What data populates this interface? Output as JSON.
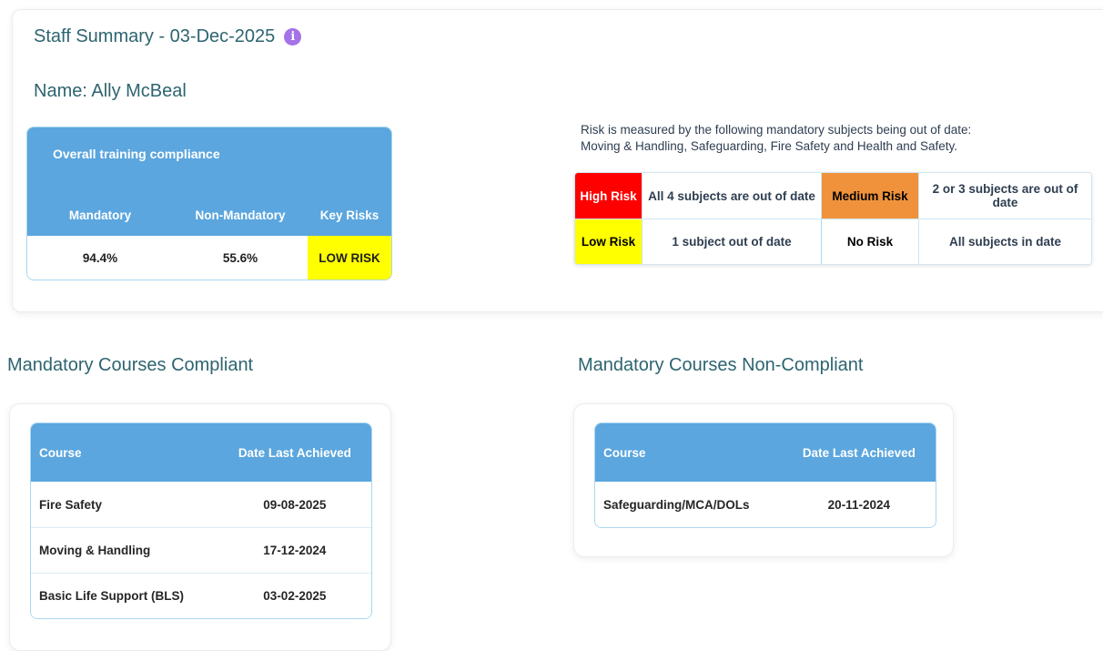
{
  "page": {
    "title": "Staff Summary - 03-Dec-2025",
    "name_label": "Name: Ally McBeal",
    "info_icon_glyph": "i"
  },
  "compliance_table": {
    "title": "Overall training compliance",
    "columns": [
      "Mandatory",
      "Non-Mandatory",
      "Key Risks"
    ],
    "values": {
      "mandatory": "94.4%",
      "non_mandatory": "55.6%",
      "key_risk": "LOW RISK"
    }
  },
  "risk_info": {
    "line1": "Risk is measured by the following mandatory subjects being out of date:",
    "line2": "Moving & Handling, Safeguarding, Fire Safety and Health and Safety."
  },
  "risk_legend": {
    "cells": [
      {
        "label": "High Risk",
        "desc": "All 4 subjects are out of date",
        "color": "#ff0000",
        "text_color": "#ffffff"
      },
      {
        "label": "Medium Risk",
        "desc": "2 or 3 subjects are out of date",
        "color": "#f0923b",
        "text_color": "#000000"
      },
      {
        "label": "Low Risk",
        "desc": "1 subject out of date",
        "color": "#ffff00",
        "text_color": "#000000"
      },
      {
        "label": "No Risk",
        "desc": "All subjects in date",
        "color": "#ffffff",
        "text_color": "#000000"
      }
    ]
  },
  "compliant_section": {
    "heading": "Mandatory Courses Compliant",
    "columns": {
      "course": "Course",
      "date": "Date Last Achieved"
    },
    "rows": [
      {
        "course": "Fire Safety",
        "date": "09-08-2025"
      },
      {
        "course": "Moving & Handling",
        "date": "17-12-2024"
      },
      {
        "course": "Basic Life Support (BLS)",
        "date": "03-02-2025"
      }
    ]
  },
  "non_compliant_section": {
    "heading": "Mandatory Courses Non-Compliant",
    "columns": {
      "course": "Course",
      "date": "Date Last Achieved"
    },
    "rows": [
      {
        "course": "Safeguarding/MCA/DOLs",
        "date": "20-11-2024"
      }
    ]
  },
  "colors": {
    "table_header_blue": "#5ba6de",
    "table_border_blue": "#a9d7f0",
    "high_risk_red": "#ff0000",
    "medium_risk_orange": "#f0923b",
    "low_risk_yellow": "#ffff00",
    "info_icon_purple": "#a573e8",
    "heading_teal": "#2d6470",
    "body_text_navy": "#2e3d50"
  }
}
